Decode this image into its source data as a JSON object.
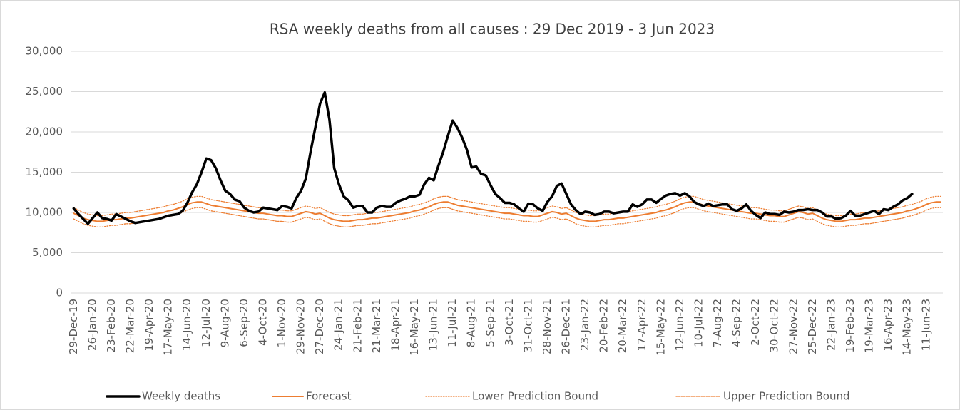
{
  "chart_data": {
    "type": "line",
    "title": "RSA weekly deaths from all causes : 29 Dec 2019 - 3 Jun 2023",
    "categories": [
      "29-Dec-19",
      null,
      null,
      null,
      "26-Jan-20",
      null,
      null,
      null,
      "23-Feb-20",
      null,
      null,
      null,
      "22-Mar-20",
      null,
      null,
      null,
      "19-Apr-20",
      null,
      null,
      null,
      "17-May-20",
      null,
      null,
      null,
      "14-Jun-20",
      null,
      null,
      null,
      "12-Jul-20",
      null,
      null,
      null,
      "9-Aug-20",
      null,
      null,
      null,
      "6-Sep-20",
      null,
      null,
      null,
      "4-Oct-20",
      null,
      null,
      null,
      "1-Nov-20",
      null,
      null,
      null,
      "29-Nov-20",
      null,
      null,
      null,
      "27-Dec-20",
      null,
      null,
      null,
      "24-Jan-21",
      null,
      null,
      null,
      "21-Feb-21",
      null,
      null,
      null,
      "21-Mar-21",
      null,
      null,
      null,
      "18-Apr-21",
      null,
      null,
      null,
      "16-May-21",
      null,
      null,
      null,
      "13-Jun-21",
      null,
      null,
      null,
      "11-Jul-21",
      null,
      null,
      null,
      "8-Aug-21",
      null,
      null,
      null,
      "5-Sep-21",
      null,
      null,
      null,
      "3-Oct-21",
      null,
      null,
      null,
      "31-Oct-21",
      null,
      null,
      null,
      "28-Nov-21",
      null,
      null,
      null,
      "26-Dec-21",
      null,
      null,
      null,
      "23-Jan-22",
      null,
      null,
      null,
      "20-Feb-22",
      null,
      null,
      null,
      "20-Mar-22",
      null,
      null,
      null,
      "17-Apr-22",
      null,
      null,
      null,
      "15-May-22",
      null,
      null,
      null,
      "12-Jun-22",
      null,
      null,
      null,
      "10-Jul-22",
      null,
      null,
      null,
      "7-Aug-22",
      null,
      null,
      null,
      "4-Sep-22",
      null,
      null,
      null,
      "2-Oct-22",
      null,
      null,
      null,
      "30-Oct-22",
      null,
      null,
      null,
      "27-Nov-22",
      null,
      null,
      null,
      "25-Dec-22",
      null,
      null,
      null,
      "22-Jan-23",
      null,
      null,
      null,
      "19-Feb-23",
      null,
      null,
      null,
      "19-Mar-23",
      null,
      null,
      null,
      "16-Apr-23",
      null,
      null,
      null,
      "14-May-23",
      null,
      null,
      null,
      "11-Jun-23",
      null,
      null,
      null
    ],
    "series": [
      {
        "name": "Weekly deaths",
        "color": "#000000",
        "line_style": "thick",
        "values": [
          10500,
          9800,
          9200,
          8600,
          9300,
          10000,
          9300,
          9200,
          9000,
          9800,
          9500,
          9200,
          8900,
          8700,
          8800,
          8900,
          9000,
          9100,
          9200,
          9400,
          9600,
          9700,
          9800,
          10200,
          11200,
          12500,
          13500,
          15000,
          16700,
          16500,
          15500,
          14000,
          12700,
          12300,
          11600,
          11400,
          10600,
          10200,
          10000,
          10100,
          10600,
          10500,
          10400,
          10300,
          10800,
          10700,
          10500,
          11800,
          12700,
          14200,
          17500,
          20500,
          23500,
          24900,
          21500,
          15500,
          13500,
          12000,
          11500,
          10600,
          10800,
          10800,
          10000,
          10000,
          10600,
          10800,
          10700,
          10700,
          11200,
          11500,
          11700,
          12000,
          12000,
          12200,
          13500,
          14300,
          14000,
          15800,
          17500,
          19500,
          21400,
          20500,
          19300,
          17800,
          15600,
          15700,
          14800,
          14600,
          13400,
          12300,
          11800,
          11200,
          11200,
          11000,
          10500,
          10100,
          11100,
          11000,
          10500,
          10200,
          11300,
          12000,
          13300,
          13600,
          12300,
          11000,
          10300,
          9800,
          10100,
          10000,
          9700,
          9800,
          10100,
          10100,
          9900,
          10000,
          10100,
          10100,
          11000,
          10700,
          11000,
          11600,
          11600,
          11200,
          11700,
          12100,
          12300,
          12400,
          12100,
          12400,
          12000,
          11300,
          11000,
          10800,
          11100,
          10800,
          10900,
          11000,
          11000,
          10400,
          10200,
          10500,
          11000,
          10200,
          9700,
          9300,
          10000,
          9800,
          9800,
          9700,
          10100,
          10000,
          10100,
          10300,
          10300,
          10400,
          10300,
          10300,
          10000,
          9500,
          9500,
          9200,
          9300,
          9600,
          10200,
          9600,
          9600,
          9800,
          10000,
          10200,
          9800,
          10400,
          10300,
          10700,
          11000,
          11500,
          11800,
          12300,
          null,
          null,
          null,
          null,
          null,
          null
        ]
      },
      {
        "name": "Forecast",
        "color": "#ed7d31",
        "line_style": "solid",
        "values": [
          9900,
          9600,
          9300,
          9100,
          9000,
          8900,
          8900,
          9000,
          9100,
          9100,
          9200,
          9300,
          9300,
          9400,
          9500,
          9600,
          9700,
          9800,
          9900,
          10000,
          10200,
          10300,
          10500,
          10700,
          11000,
          11200,
          11300,
          11300,
          11100,
          10900,
          10800,
          10700,
          10600,
          10500,
          10400,
          10300,
          10200,
          10100,
          10000,
          9900,
          9900,
          9800,
          9700,
          9600,
          9600,
          9500,
          9500,
          9700,
          9900,
          10100,
          10000,
          9800,
          9900,
          9600,
          9300,
          9100,
          9000,
          8900,
          8900,
          9000,
          9100,
          9100,
          9200,
          9300,
          9300,
          9400,
          9500,
          9600,
          9700,
          9800,
          9900,
          10000,
          10200,
          10300,
          10500,
          10700,
          11000,
          11200,
          11300,
          11300,
          11100,
          10900,
          10800,
          10700,
          10600,
          10500,
          10400,
          10300,
          10200,
          10100,
          10000,
          9900,
          9900,
          9800,
          9700,
          9600,
          9600,
          9500,
          9500,
          9700,
          9900,
          10100,
          10000,
          9800,
          9900,
          9600,
          9300,
          9100,
          9000,
          8900,
          8900,
          9000,
          9100,
          9100,
          9200,
          9300,
          9300,
          9400,
          9500,
          9600,
          9700,
          9800,
          9900,
          10000,
          10200,
          10300,
          10500,
          10700,
          11000,
          11200,
          11300,
          11300,
          11100,
          10900,
          10800,
          10700,
          10600,
          10500,
          10400,
          10300,
          10200,
          10100,
          10000,
          9900,
          9900,
          9800,
          9700,
          9600,
          9600,
          9500,
          9500,
          9700,
          9900,
          10100,
          10000,
          9800,
          9900,
          9600,
          9300,
          9100,
          9000,
          8900,
          8900,
          9000,
          9100,
          9100,
          9200,
          9300,
          9300,
          9400,
          9500,
          9600,
          9700,
          9800,
          9900,
          10000,
          10200,
          10300,
          10500,
          10700,
          11000,
          11200,
          11300,
          11300
        ]
      },
      {
        "name": "Lower Prediction Bound",
        "color": "#ed7d31",
        "line_style": "dotted",
        "values": [
          9200,
          8900,
          8600,
          8400,
          8300,
          8200,
          8200,
          8300,
          8400,
          8400,
          8500,
          8600,
          8600,
          8700,
          8800,
          8900,
          9000,
          9100,
          9200,
          9300,
          9500,
          9600,
          9800,
          10000,
          10300,
          10500,
          10600,
          10600,
          10400,
          10200,
          10100,
          10000,
          9900,
          9800,
          9700,
          9600,
          9500,
          9400,
          9300,
          9200,
          9200,
          9100,
          9000,
          8900,
          8900,
          8800,
          8800,
          9000,
          9200,
          9400,
          9300,
          9100,
          9200,
          8900,
          8600,
          8400,
          8300,
          8200,
          8200,
          8300,
          8400,
          8400,
          8500,
          8600,
          8600,
          8700,
          8800,
          8900,
          9000,
          9100,
          9200,
          9300,
          9500,
          9600,
          9800,
          10000,
          10300,
          10500,
          10600,
          10600,
          10400,
          10200,
          10100,
          10000,
          9900,
          9800,
          9700,
          9600,
          9500,
          9400,
          9300,
          9200,
          9200,
          9100,
          9000,
          8900,
          8900,
          8800,
          8800,
          9000,
          9200,
          9400,
          9300,
          9100,
          9200,
          8900,
          8600,
          8400,
          8300,
          8200,
          8200,
          8300,
          8400,
          8400,
          8500,
          8600,
          8600,
          8700,
          8800,
          8900,
          9000,
          9100,
          9200,
          9300,
          9500,
          9600,
          9800,
          10000,
          10300,
          10500,
          10600,
          10600,
          10400,
          10200,
          10100,
          10000,
          9900,
          9800,
          9700,
          9600,
          9500,
          9400,
          9300,
          9200,
          9200,
          9100,
          9000,
          8900,
          8900,
          8800,
          8800,
          9000,
          9200,
          9400,
          9300,
          9100,
          9200,
          8900,
          8600,
          8400,
          8300,
          8200,
          8200,
          8300,
          8400,
          8400,
          8500,
          8600,
          8600,
          8700,
          8800,
          8900,
          9000,
          9100,
          9200,
          9300,
          9500,
          9600,
          9800,
          10000,
          10300,
          10500,
          10600,
          10600
        ]
      },
      {
        "name": "Upper Prediction Bound",
        "color": "#ed7d31",
        "line_style": "dotted",
        "values": [
          10600,
          10300,
          10000,
          9800,
          9700,
          9600,
          9600,
          9700,
          9800,
          9800,
          9900,
          10000,
          10000,
          10100,
          10200,
          10300,
          10400,
          10500,
          10600,
          10700,
          10900,
          11000,
          11200,
          11400,
          11700,
          11900,
          12000,
          12000,
          11800,
          11600,
          11500,
          11400,
          11300,
          11200,
          11100,
          11000,
          10900,
          10800,
          10700,
          10600,
          10600,
          10500,
          10400,
          10300,
          10300,
          10200,
          10200,
          10400,
          10600,
          10800,
          10700,
          10500,
          10600,
          10300,
          10000,
          9800,
          9700,
          9600,
          9600,
          9700,
          9800,
          9800,
          9900,
          10000,
          10000,
          10100,
          10200,
          10300,
          10400,
          10500,
          10600,
          10700,
          10900,
          11000,
          11200,
          11400,
          11700,
          11900,
          12000,
          12000,
          11800,
          11600,
          11500,
          11400,
          11300,
          11200,
          11100,
          11000,
          10900,
          10800,
          10700,
          10600,
          10600,
          10500,
          10400,
          10300,
          10300,
          10200,
          10200,
          10400,
          10600,
          10800,
          10700,
          10500,
          10600,
          10300,
          10000,
          9800,
          9700,
          9600,
          9600,
          9700,
          9800,
          9800,
          9900,
          10000,
          10000,
          10100,
          10200,
          10300,
          10400,
          10500,
          10600,
          10700,
          10900,
          11000,
          11200,
          11400,
          11700,
          11900,
          12000,
          12000,
          11800,
          11600,
          11500,
          11400,
          11300,
          11200,
          11100,
          11000,
          10900,
          10800,
          10700,
          10600,
          10600,
          10500,
          10400,
          10300,
          10300,
          10200,
          10200,
          10400,
          10600,
          10800,
          10700,
          10500,
          10600,
          10300,
          10000,
          9800,
          9700,
          9600,
          9600,
          9700,
          9800,
          9800,
          9900,
          10000,
          10000,
          10100,
          10200,
          10300,
          10400,
          10500,
          10600,
          10700,
          10900,
          11000,
          11200,
          11400,
          11700,
          11900,
          12000,
          12000
        ]
      }
    ],
    "ylim": [
      0,
      30000
    ],
    "yticks": [
      0,
      {
        "value": 5000,
        "label": "5,000"
      },
      {
        "value": 10000,
        "label": "10,000"
      },
      {
        "value": 15000,
        "label": "15,000"
      },
      {
        "value": 20000,
        "label": "20,000"
      },
      {
        "value": 25000,
        "label": "25,000"
      },
      {
        "value": 30000,
        "label": "30,000"
      }
    ],
    "grid": true,
    "legend": "bottom"
  }
}
